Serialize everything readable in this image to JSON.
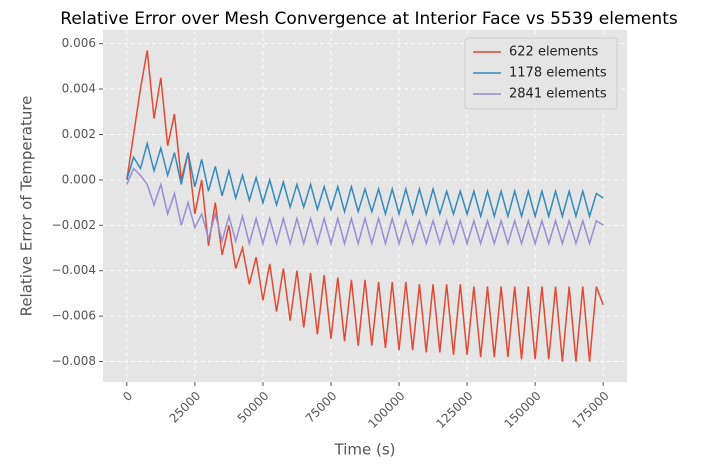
{
  "chart_data": {
    "type": "line",
    "title": "Relative Error over Mesh Convergence at Interior Face vs 5539 elements",
    "x_label": "Time (s)",
    "y_label": "Relative Error of Temperature",
    "x": [
      0,
      2500,
      5000,
      7500,
      10000,
      12500,
      15000,
      17500,
      20000,
      22500,
      25000,
      27500,
      30000,
      32500,
      35000,
      37500,
      40000,
      42500,
      45000,
      47500,
      50000,
      52500,
      55000,
      57500,
      60000,
      62500,
      65000,
      67500,
      70000,
      72500,
      75000,
      77500,
      80000,
      82500,
      85000,
      87500,
      90000,
      92500,
      95000,
      97500,
      100000,
      102500,
      105000,
      107500,
      110000,
      112500,
      115000,
      117500,
      120000,
      122500,
      125000,
      127500,
      130000,
      132500,
      135000,
      137500,
      140000,
      142500,
      145000,
      147500,
      150000,
      152500,
      155000,
      157500,
      160000,
      162500,
      165000,
      167500,
      170000,
      172500,
      175000
    ],
    "series": [
      {
        "name": "622 elements",
        "color": "#E24A33",
        "values": [
          0,
          0.002,
          0.004,
          0.0057,
          0.0027,
          0.0045,
          0.0015,
          0.0029,
          0.0,
          0.0012,
          -0.0015,
          0.0,
          -0.0029,
          -0.001,
          -0.0033,
          -0.002,
          -0.0039,
          -0.003,
          -0.0046,
          -0.0034,
          -0.0053,
          -0.0037,
          -0.0058,
          -0.0039,
          -0.0062,
          -0.004,
          -0.0065,
          -0.0041,
          -0.0068,
          -0.0042,
          -0.007,
          -0.0043,
          -0.0071,
          -0.0044,
          -0.0073,
          -0.0044,
          -0.0073,
          -0.0045,
          -0.0074,
          -0.0045,
          -0.0075,
          -0.0045,
          -0.0075,
          -0.0046,
          -0.0076,
          -0.0046,
          -0.0076,
          -0.0046,
          -0.0077,
          -0.0046,
          -0.0077,
          -0.0047,
          -0.0078,
          -0.0047,
          -0.0078,
          -0.0047,
          -0.0078,
          -0.0047,
          -0.0079,
          -0.0047,
          -0.0079,
          -0.0047,
          -0.0079,
          -0.0047,
          -0.008,
          -0.0047,
          -0.008,
          -0.0047,
          -0.008,
          -0.0047,
          -0.0055
        ]
      },
      {
        "name": "1178 elements",
        "color": "#348ABD",
        "values": [
          0,
          0.001,
          0.0005,
          0.0016,
          0.0004,
          0.0014,
          0.0002,
          0.0012,
          -0.0002,
          0.0012,
          -0.0003,
          0.0009,
          -0.0005,
          0.0006,
          -0.0007,
          0.0004,
          -0.0008,
          0.0002,
          -0.0009,
          0.0001,
          -0.001,
          0.0,
          -0.0011,
          -0.0001,
          -0.0012,
          -0.0002,
          -0.0012,
          -0.0002,
          -0.0013,
          -0.0003,
          -0.0013,
          -0.0003,
          -0.0014,
          -0.0003,
          -0.0014,
          -0.0004,
          -0.0014,
          -0.0004,
          -0.0015,
          -0.0004,
          -0.0015,
          -0.0004,
          -0.0015,
          -0.0004,
          -0.0015,
          -0.0004,
          -0.0015,
          -0.0005,
          -0.0015,
          -0.0005,
          -0.0015,
          -0.0005,
          -0.0016,
          -0.0005,
          -0.0016,
          -0.0005,
          -0.0016,
          -0.0005,
          -0.0016,
          -0.0005,
          -0.0016,
          -0.0005,
          -0.0016,
          -0.0005,
          -0.0016,
          -0.0005,
          -0.0016,
          -0.0005,
          -0.0016,
          -0.0006,
          -0.0008
        ]
      },
      {
        "name": "2841 elements",
        "color": "#988ED5",
        "values": [
          -0.0002,
          0.0005,
          0.0002,
          -0.0002,
          -0.0011,
          -0.0002,
          -0.0015,
          -0.0006,
          -0.002,
          -0.001,
          -0.0021,
          -0.0015,
          -0.0026,
          -0.0015,
          -0.0027,
          -0.0016,
          -0.0027,
          -0.0016,
          -0.0028,
          -0.0017,
          -0.0028,
          -0.0017,
          -0.0028,
          -0.0017,
          -0.0028,
          -0.0017,
          -0.0028,
          -0.0017,
          -0.0028,
          -0.0017,
          -0.0028,
          -0.0017,
          -0.0028,
          -0.0017,
          -0.0028,
          -0.0017,
          -0.0028,
          -0.0017,
          -0.0028,
          -0.0017,
          -0.0028,
          -0.0018,
          -0.0028,
          -0.0018,
          -0.0028,
          -0.0018,
          -0.0028,
          -0.0018,
          -0.0028,
          -0.0018,
          -0.0028,
          -0.0018,
          -0.0028,
          -0.0018,
          -0.0028,
          -0.0018,
          -0.0028,
          -0.0018,
          -0.0028,
          -0.0018,
          -0.0028,
          -0.0018,
          -0.0028,
          -0.0018,
          -0.0028,
          -0.0018,
          -0.0028,
          -0.0018,
          -0.0028,
          -0.0018,
          -0.002
        ]
      }
    ],
    "xlim": [
      -8750,
      183750
    ],
    "xticks": [
      0,
      25000,
      50000,
      75000,
      100000,
      125000,
      150000,
      175000
    ],
    "ylim": [
      -0.0089,
      0.0066
    ],
    "yticks": [
      {
        "value": -0.008,
        "label": "−0.008"
      },
      {
        "value": -0.006,
        "label": "−0.006"
      },
      {
        "value": -0.004,
        "label": "−0.004"
      },
      {
        "value": -0.002,
        "label": "−0.002"
      },
      {
        "value": 0,
        "label": "0.000"
      },
      0.002,
      0.004,
      0.006
    ],
    "grid": true,
    "legend_position": "upper-right"
  }
}
